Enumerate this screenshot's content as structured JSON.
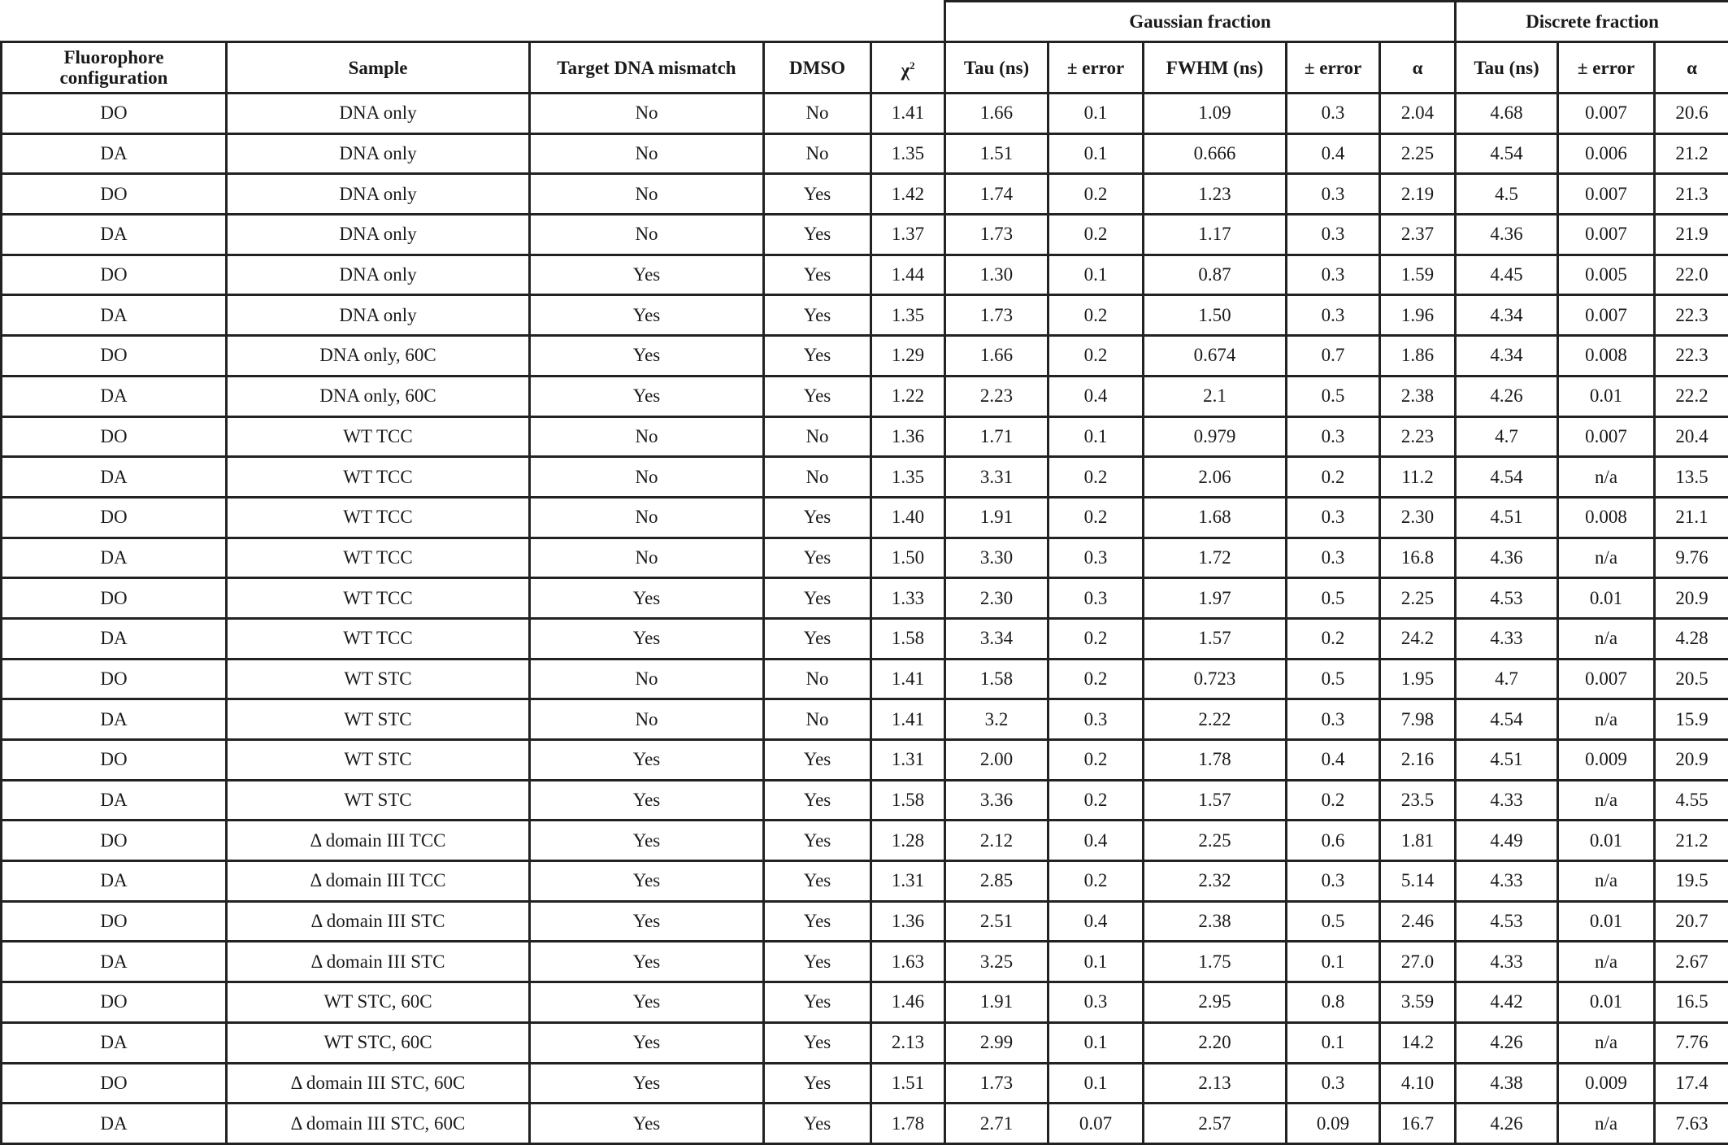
{
  "table": {
    "group_headers": {
      "gaussian": "Gaussian fraction",
      "discrete": "Discrete fraction"
    },
    "columns": [
      "Fluorophore configuration",
      "Sample",
      "Target DNA mismatch",
      "DMSO",
      "χ",
      "Tau (ns)",
      "± error",
      "FWHM (ns)",
      "± error",
      "α",
      "Tau (ns)",
      "± error",
      "α"
    ],
    "chi_superscript": "2",
    "rows": [
      [
        "DO",
        "DNA only",
        "No",
        "No",
        "1.41",
        "1.66",
        "0.1",
        "1.09",
        "0.3",
        "2.04",
        "4.68",
        "0.007",
        "20.6"
      ],
      [
        "DA",
        "DNA only",
        "No",
        "No",
        "1.35",
        "1.51",
        "0.1",
        "0.666",
        "0.4",
        "2.25",
        "4.54",
        "0.006",
        "21.2"
      ],
      [
        "DO",
        "DNA only",
        "No",
        "Yes",
        "1.42",
        "1.74",
        "0.2",
        "1.23",
        "0.3",
        "2.19",
        "4.5",
        "0.007",
        "21.3"
      ],
      [
        "DA",
        "DNA only",
        "No",
        "Yes",
        "1.37",
        "1.73",
        "0.2",
        "1.17",
        "0.3",
        "2.37",
        "4.36",
        "0.007",
        "21.9"
      ],
      [
        "DO",
        "DNA only",
        "Yes",
        "Yes",
        "1.44",
        "1.30",
        "0.1",
        "0.87",
        "0.3",
        "1.59",
        "4.45",
        "0.005",
        "22.0"
      ],
      [
        "DA",
        "DNA only",
        "Yes",
        "Yes",
        "1.35",
        "1.73",
        "0.2",
        "1.50",
        "0.3",
        "1.96",
        "4.34",
        "0.007",
        "22.3"
      ],
      [
        "DO",
        "DNA only, 60C",
        "Yes",
        "Yes",
        "1.29",
        "1.66",
        "0.2",
        "0.674",
        "0.7",
        "1.86",
        "4.34",
        "0.008",
        "22.3"
      ],
      [
        "DA",
        "DNA only, 60C",
        "Yes",
        "Yes",
        "1.22",
        "2.23",
        "0.4",
        "2.1",
        "0.5",
        "2.38",
        "4.26",
        "0.01",
        "22.2"
      ],
      [
        "DO",
        "WT TCC",
        "No",
        "No",
        "1.36",
        "1.71",
        "0.1",
        "0.979",
        "0.3",
        "2.23",
        "4.7",
        "0.007",
        "20.4"
      ],
      [
        "DA",
        "WT TCC",
        "No",
        "No",
        "1.35",
        "3.31",
        "0.2",
        "2.06",
        "0.2",
        "11.2",
        "4.54",
        "n/a",
        "13.5"
      ],
      [
        "DO",
        "WT TCC",
        "No",
        "Yes",
        "1.40",
        "1.91",
        "0.2",
        "1.68",
        "0.3",
        "2.30",
        "4.51",
        "0.008",
        "21.1"
      ],
      [
        "DA",
        "WT TCC",
        "No",
        "Yes",
        "1.50",
        "3.30",
        "0.3",
        "1.72",
        "0.3",
        "16.8",
        "4.36",
        "n/a",
        "9.76"
      ],
      [
        "DO",
        "WT TCC",
        "Yes",
        "Yes",
        "1.33",
        "2.30",
        "0.3",
        "1.97",
        "0.5",
        "2.25",
        "4.53",
        "0.01",
        "20.9"
      ],
      [
        "DA",
        "WT TCC",
        "Yes",
        "Yes",
        "1.58",
        "3.34",
        "0.2",
        "1.57",
        "0.2",
        "24.2",
        "4.33",
        "n/a",
        "4.28"
      ],
      [
        "DO",
        "WT STC",
        "No",
        "No",
        "1.41",
        "1.58",
        "0.2",
        "0.723",
        "0.5",
        "1.95",
        "4.7",
        "0.007",
        "20.5"
      ],
      [
        "DA",
        "WT STC",
        "No",
        "No",
        "1.41",
        "3.2",
        "0.3",
        "2.22",
        "0.3",
        "7.98",
        "4.54",
        "n/a",
        "15.9"
      ],
      [
        "DO",
        "WT STC",
        "Yes",
        "Yes",
        "1.31",
        "2.00",
        "0.2",
        "1.78",
        "0.4",
        "2.16",
        "4.51",
        "0.009",
        "20.9"
      ],
      [
        "DA",
        "WT STC",
        "Yes",
        "Yes",
        "1.58",
        "3.36",
        "0.2",
        "1.57",
        "0.2",
        "23.5",
        "4.33",
        "n/a",
        "4.55"
      ],
      [
        "DO",
        "Δ domain III TCC",
        "Yes",
        "Yes",
        "1.28",
        "2.12",
        "0.4",
        "2.25",
        "0.6",
        "1.81",
        "4.49",
        "0.01",
        "21.2"
      ],
      [
        "DA",
        "Δ domain III TCC",
        "Yes",
        "Yes",
        "1.31",
        "2.85",
        "0.2",
        "2.32",
        "0.3",
        "5.14",
        "4.33",
        "n/a",
        "19.5"
      ],
      [
        "DO",
        "Δ domain III STC",
        "Yes",
        "Yes",
        "1.36",
        "2.51",
        "0.4",
        "2.38",
        "0.5",
        "2.46",
        "4.53",
        "0.01",
        "20.7"
      ],
      [
        "DA",
        "Δ domain III STC",
        "Yes",
        "Yes",
        "1.63",
        "3.25",
        "0.1",
        "1.75",
        "0.1",
        "27.0",
        "4.33",
        "n/a",
        "2.67"
      ],
      [
        "DO",
        "WT STC, 60C",
        "Yes",
        "Yes",
        "1.46",
        "1.91",
        "0.3",
        "2.95",
        "0.8",
        "3.59",
        "4.42",
        "0.01",
        "16.5"
      ],
      [
        "DA",
        "WT STC, 60C",
        "Yes",
        "Yes",
        "2.13",
        "2.99",
        "0.1",
        "2.20",
        "0.1",
        "14.2",
        "4.26",
        "n/a",
        "7.76"
      ],
      [
        "DO",
        "Δ domain III STC, 60C",
        "Yes",
        "Yes",
        "1.51",
        "1.73",
        "0.1",
        "2.13",
        "0.3",
        "4.10",
        "4.38",
        "0.009",
        "17.4"
      ],
      [
        "DA",
        "Δ domain III STC, 60C",
        "Yes",
        "Yes",
        "1.78",
        "2.71",
        "0.07",
        "2.57",
        "0.09",
        "16.7",
        "4.26",
        "n/a",
        "7.63"
      ]
    ]
  }
}
